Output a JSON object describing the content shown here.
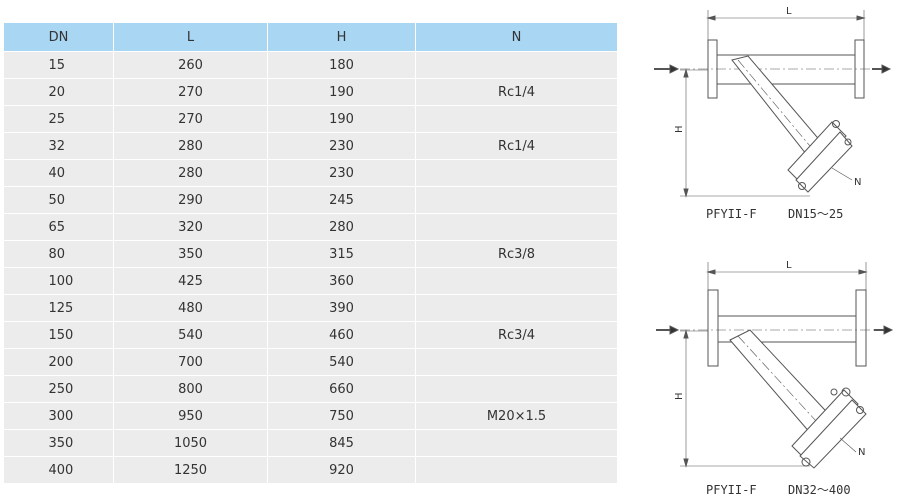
{
  "table": {
    "headers": [
      "DN",
      "L",
      "H",
      "N"
    ],
    "rows": [
      {
        "dn": "15",
        "l": "260",
        "h": "180",
        "n": ""
      },
      {
        "dn": "20",
        "l": "270",
        "h": "190",
        "n": "Rc1/4"
      },
      {
        "dn": "25",
        "l": "270",
        "h": "190",
        "n": ""
      },
      {
        "dn": "32",
        "l": "280",
        "h": "230",
        "n": "Rc1/4"
      },
      {
        "dn": "40",
        "l": "280",
        "h": "230",
        "n": ""
      },
      {
        "dn": "50",
        "l": "290",
        "h": "245",
        "n": ""
      },
      {
        "dn": "65",
        "l": "320",
        "h": "280",
        "n": ""
      },
      {
        "dn": "80",
        "l": "350",
        "h": "315",
        "n": "Rc3/8"
      },
      {
        "dn": "100",
        "l": "425",
        "h": "360",
        "n": ""
      },
      {
        "dn": "125",
        "l": "480",
        "h": "390",
        "n": ""
      },
      {
        "dn": "150",
        "l": "540",
        "h": "460",
        "n": "Rc3/4"
      },
      {
        "dn": "200",
        "l": "700",
        "h": "540",
        "n": ""
      },
      {
        "dn": "250",
        "l": "800",
        "h": "660",
        "n": ""
      },
      {
        "dn": "300",
        "l": "950",
        "h": "750",
        "n": "M20×1.5"
      },
      {
        "dn": "350",
        "l": "1050",
        "h": "845",
        "n": ""
      },
      {
        "dn": "400",
        "l": "1250",
        "h": "920",
        "n": ""
      }
    ]
  },
  "diagrams": [
    {
      "model": "PFYII-F",
      "range": "DN15～25",
      "dim_l": "L",
      "dim_h": "H",
      "dim_n": "N"
    },
    {
      "model": "PFYII-F",
      "range": "DN32～400",
      "dim_l": "L",
      "dim_h": "H",
      "dim_n": "N"
    }
  ],
  "colors": {
    "header_bg": "#a9d6f3",
    "row_bg": "#ececec",
    "border": "#ffffff"
  }
}
